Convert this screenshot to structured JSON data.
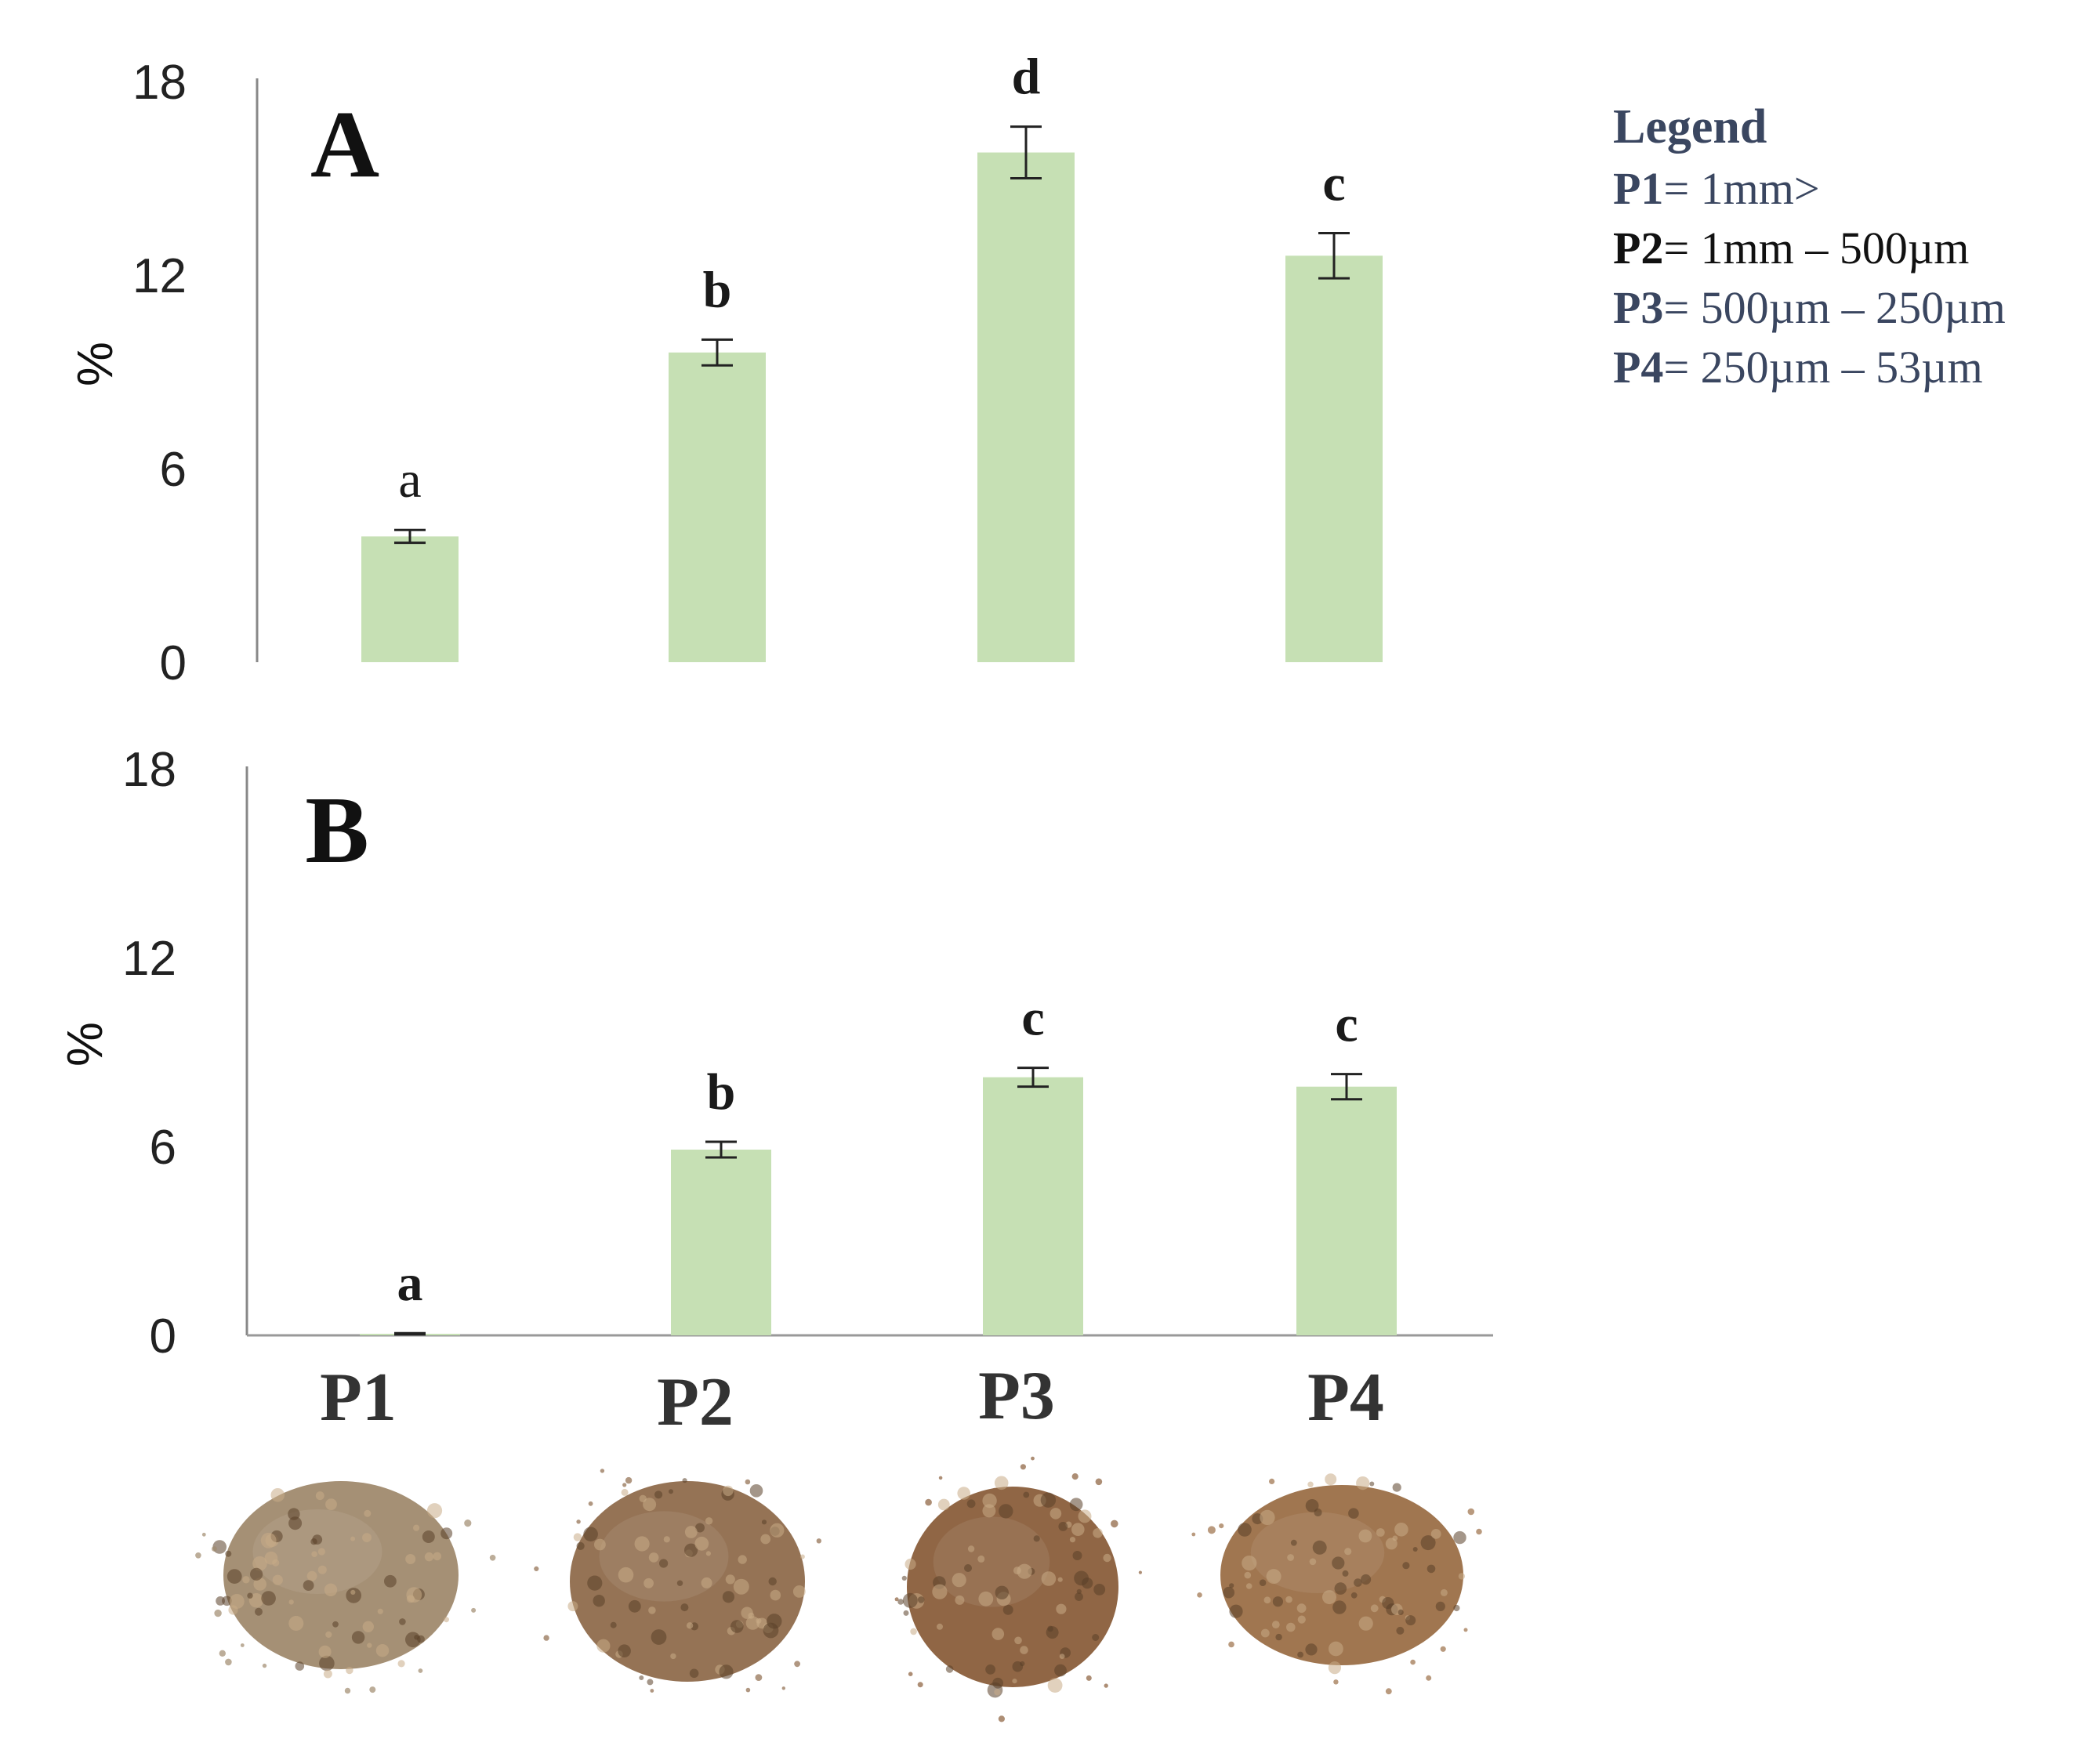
{
  "chart_data": [
    {
      "type": "bar",
      "panel_label": "A",
      "categories": [
        "P1",
        "P2",
        "P3",
        "P4"
      ],
      "values": [
        3.9,
        9.6,
        15.8,
        12.6
      ],
      "errors": [
        0.2,
        0.4,
        0.8,
        0.7
      ],
      "significance": [
        "a",
        "b",
        "d",
        "c"
      ],
      "ylabel": "%",
      "yticks": [
        0,
        6,
        12,
        18
      ],
      "ylim": [
        0,
        18
      ],
      "bar_color": "#c6e0b4"
    },
    {
      "type": "bar",
      "panel_label": "B",
      "categories": [
        "P1",
        "P2",
        "P3",
        "P4"
      ],
      "values": [
        0.05,
        5.9,
        8.2,
        7.9
      ],
      "errors": [
        0.02,
        0.25,
        0.3,
        0.4
      ],
      "significance": [
        "a",
        "b",
        "c",
        "c"
      ],
      "ylabel": "%",
      "yticks": [
        0,
        6,
        12,
        18
      ],
      "ylim": [
        0,
        18
      ],
      "bar_color": "#c6e0b4"
    }
  ],
  "categories": [
    "P1",
    "P2",
    "P3",
    "P4"
  ],
  "legend": {
    "title": "Legend",
    "items": [
      {
        "key": "P1",
        "text": "= 1mm>"
      },
      {
        "key": "P2",
        "text": "= 1mm – 500µm"
      },
      {
        "key": "P3",
        "text": "= 500µm – 250µm"
      },
      {
        "key": "P4",
        "text": "= 250µm – 53µm"
      }
    ]
  },
  "soil_samples": [
    {
      "name": "P1",
      "color": "#a08a6e"
    },
    {
      "name": "P2",
      "color": "#8f6b4c"
    },
    {
      "name": "P3",
      "color": "#8a5e3b"
    },
    {
      "name": "P4",
      "color": "#9b6f47"
    }
  ]
}
